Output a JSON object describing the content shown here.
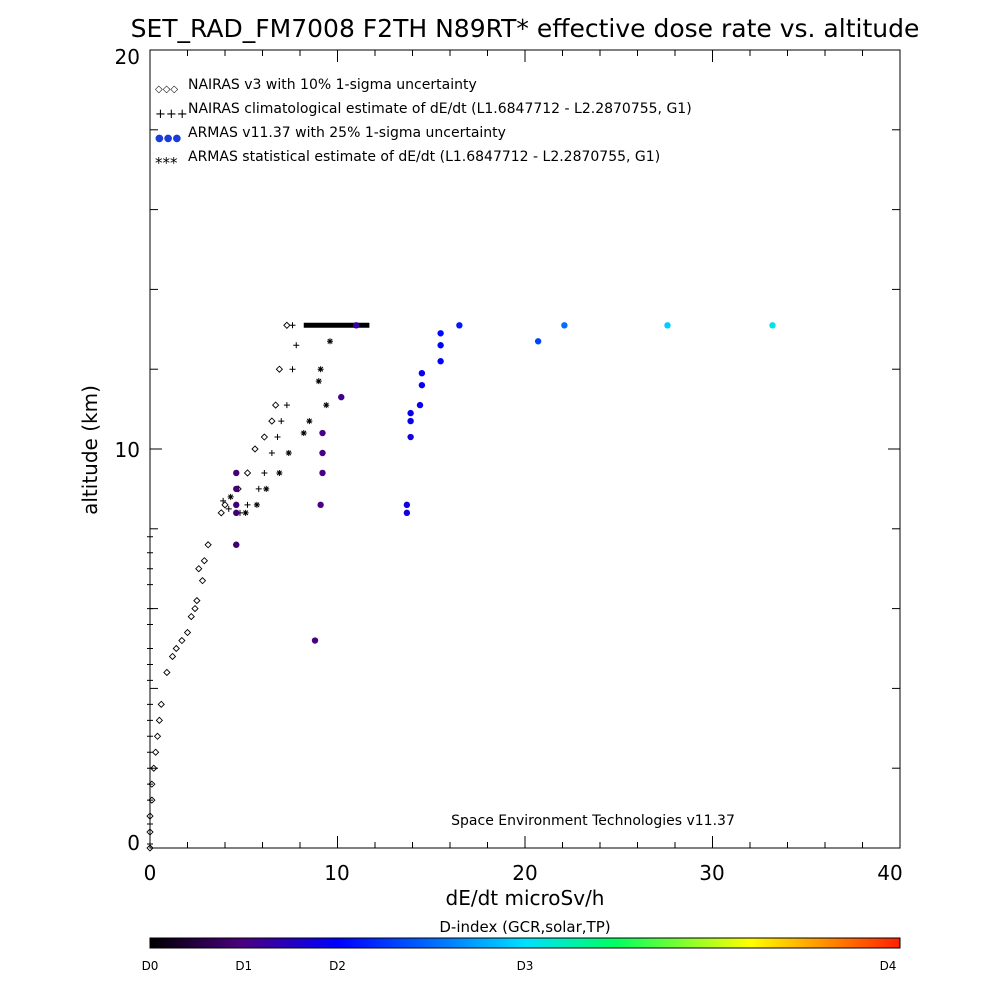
{
  "chart_data": {
    "type": "scatter",
    "title": "SET_RAD_FM7008  F2TH N89RT* effective dose rate vs. altitude",
    "xlabel": "dE/dt microSv/h",
    "ylabel": "altitude (km)",
    "xlim": [
      0,
      40
    ],
    "ylim": [
      0,
      20
    ],
    "x_ticks": [
      "0",
      "10",
      "20",
      "30",
      "40"
    ],
    "y_ticks": [
      "0",
      "10",
      "20"
    ],
    "grid": false,
    "legend_position": "top-left",
    "legend": [
      {
        "marker": "diamond",
        "symbols": "◇◇◇",
        "label": "NAIRAS v3 with 10% 1-sigma uncertainty"
      },
      {
        "marker": "plus",
        "symbols": "+++",
        "label": "NAIRAS climatological estimate of dE/dt (L1.6847712 - L2.2870755, G1)"
      },
      {
        "marker": "dot",
        "symbols": "●●●",
        "label": "ARMAS v11.37 with 25% 1-sigma uncertainty"
      },
      {
        "marker": "star",
        "symbols": "***",
        "label": "ARMAS statistical estimate of dE/dt (L1.6847712 - L2.2870755, G1)"
      }
    ],
    "annotation": "Space Environment Technologies v11.37",
    "colorbar": {
      "title": "D-index (GCR,solar,TP)",
      "labels": [
        "D0",
        "D1",
        "D2",
        "D3",
        "D4"
      ],
      "label_positions": [
        0,
        0.125,
        0.25,
        0.5,
        1.0
      ]
    },
    "series": [
      {
        "name": "NAIRAS v3",
        "marker": "diamond",
        "points": [
          [
            7.3,
            13.1
          ],
          [
            6.9,
            12.0
          ],
          [
            6.7,
            11.1
          ],
          [
            6.5,
            10.7
          ],
          [
            6.1,
            10.3
          ],
          [
            5.6,
            10.0
          ],
          [
            5.2,
            9.4
          ],
          [
            4.7,
            9.0
          ],
          [
            4.0,
            8.6
          ],
          [
            3.8,
            8.4
          ],
          [
            3.1,
            7.6
          ],
          [
            2.9,
            7.2
          ],
          [
            2.6,
            7.0
          ],
          [
            2.8,
            6.7
          ],
          [
            2.5,
            6.2
          ],
          [
            2.4,
            6.0
          ],
          [
            2.2,
            5.8
          ],
          [
            2.0,
            5.4
          ],
          [
            1.7,
            5.2
          ],
          [
            1.4,
            5.0
          ],
          [
            1.2,
            4.8
          ],
          [
            0.9,
            4.4
          ],
          [
            0.6,
            3.6
          ],
          [
            0.5,
            3.2
          ],
          [
            0.4,
            2.8
          ],
          [
            0.3,
            2.4
          ],
          [
            0.2,
            2.0
          ],
          [
            0.1,
            1.6
          ],
          [
            0.1,
            1.2
          ],
          [
            0.0,
            0.8
          ],
          [
            0.0,
            0.4
          ],
          [
            0.0,
            0.0
          ]
        ]
      },
      {
        "name": "NAIRAS climatological estimate",
        "marker": "plus",
        "points": [
          [
            7.6,
            13.1
          ],
          [
            7.8,
            12.6
          ],
          [
            7.6,
            12.0
          ],
          [
            7.3,
            11.1
          ],
          [
            7.0,
            10.7
          ],
          [
            6.8,
            10.3
          ],
          [
            6.5,
            9.9
          ],
          [
            6.1,
            9.4
          ],
          [
            5.8,
            9.0
          ],
          [
            5.2,
            8.6
          ],
          [
            4.8,
            8.4
          ],
          [
            3.9,
            8.7
          ],
          [
            4.2,
            8.5
          ],
          [
            0.0,
            7.8
          ],
          [
            0.0,
            7.4
          ],
          [
            0.0,
            7.0
          ],
          [
            0.0,
            6.6
          ],
          [
            0.0,
            6.0
          ],
          [
            0.0,
            5.6
          ],
          [
            0.0,
            5.0
          ],
          [
            0.0,
            4.6
          ],
          [
            0.0,
            4.2
          ],
          [
            0.0,
            3.6
          ],
          [
            0.0,
            3.2
          ],
          [
            0.0,
            2.8
          ],
          [
            0.0,
            2.4
          ],
          [
            0.0,
            2.0
          ],
          [
            0.0,
            1.6
          ],
          [
            0.0,
            1.2
          ],
          [
            0.0,
            0.6
          ],
          [
            0.0,
            0.1
          ]
        ]
      },
      {
        "name": "ARMAS statistical estimate",
        "marker": "star",
        "points": [
          [
            9.6,
            12.7
          ],
          [
            9.1,
            12.0
          ],
          [
            9.0,
            11.7
          ],
          [
            9.4,
            11.1
          ],
          [
            8.5,
            10.7
          ],
          [
            8.2,
            10.4
          ],
          [
            7.4,
            9.9
          ],
          [
            6.9,
            9.4
          ],
          [
            6.2,
            9.0
          ],
          [
            5.7,
            8.6
          ],
          [
            5.1,
            8.4
          ],
          [
            4.3,
            8.8
          ],
          [
            4.6,
            7.6
          ]
        ]
      },
      {
        "name": "ARMAS v11.37",
        "marker": "dot",
        "points": [
          [
            33.2,
            13.1,
            0.52
          ],
          [
            27.6,
            13.1,
            0.48
          ],
          [
            22.1,
            13.1,
            0.38
          ],
          [
            20.7,
            12.7,
            0.33
          ],
          [
            16.5,
            13.1,
            0.28
          ],
          [
            15.5,
            12.9,
            0.26
          ],
          [
            15.5,
            12.6,
            0.25
          ],
          [
            15.5,
            12.2,
            0.25
          ],
          [
            14.5,
            11.9,
            0.24
          ],
          [
            14.5,
            11.6,
            0.24
          ],
          [
            14.4,
            11.1,
            0.23
          ],
          [
            13.9,
            10.9,
            0.23
          ],
          [
            13.9,
            10.7,
            0.23
          ],
          [
            13.9,
            10.3,
            0.22
          ],
          [
            13.7,
            8.6,
            0.22
          ],
          [
            13.7,
            8.4,
            0.22
          ],
          [
            11.0,
            13.1,
            0.16
          ],
          [
            10.2,
            11.3,
            0.14
          ],
          [
            9.2,
            10.4,
            0.13
          ],
          [
            9.2,
            9.9,
            0.13
          ],
          [
            9.2,
            9.4,
            0.13
          ],
          [
            9.1,
            8.6,
            0.13
          ],
          [
            8.8,
            5.2,
            0.12
          ],
          [
            4.6,
            9.4,
            0.11
          ],
          [
            4.6,
            9.0,
            0.11
          ],
          [
            4.6,
            8.6,
            0.11
          ],
          [
            4.6,
            8.4,
            0.11
          ],
          [
            4.6,
            7.6,
            0.11
          ]
        ]
      }
    ],
    "dense_bar": {
      "x_from": 8.2,
      "x_to": 11.7,
      "y": 13.1
    }
  }
}
